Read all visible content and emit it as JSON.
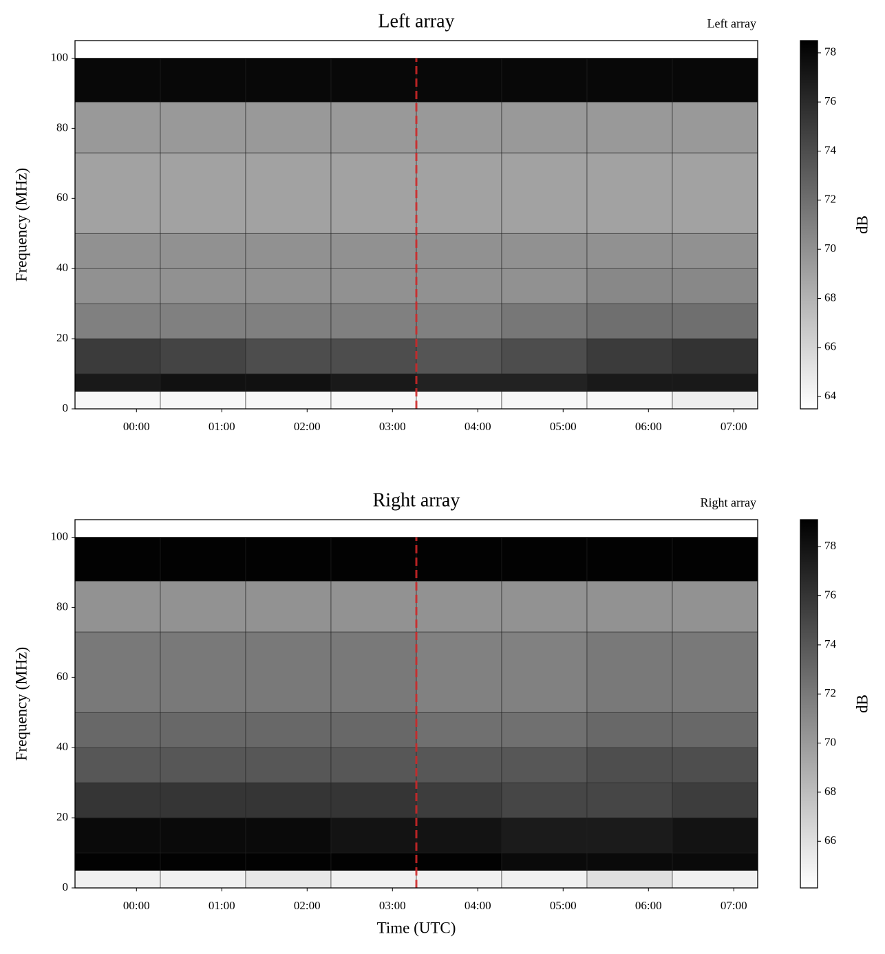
{
  "chart_data": [
    {
      "type": "heatmap",
      "title": "Left array",
      "corner_label": "Left array",
      "y_label": "Frequency (MHz)",
      "colorbar_label": "dB",
      "colormap": "gray_r",
      "xlim": [
        -0.72,
        7.28
      ],
      "xticks": [
        {
          "value": 0,
          "label": "00:00"
        },
        {
          "value": 1,
          "label": "01:00"
        },
        {
          "value": 2,
          "label": "02:00"
        },
        {
          "value": 3,
          "label": "03:00"
        },
        {
          "value": 4,
          "label": "04:00"
        },
        {
          "value": 5,
          "label": "05:00"
        },
        {
          "value": 6,
          "label": "06:00"
        },
        {
          "value": 7,
          "label": "07:00"
        }
      ],
      "ylim": [
        0,
        105
      ],
      "yticks": [
        0,
        20,
        40,
        60,
        80,
        100
      ],
      "clim": [
        63.5,
        78.5
      ],
      "cticks": [
        64,
        66,
        68,
        70,
        72,
        74,
        76,
        78
      ],
      "x_bins": [
        -0.72,
        0.28,
        1.28,
        2.28,
        3.28,
        4.28,
        5.28,
        6.28,
        7.28
      ],
      "y_bins": [
        0,
        5,
        10,
        20,
        30,
        40,
        50,
        73,
        87.5,
        100
      ],
      "values": [
        [
          64,
          64,
          64,
          64,
          64,
          64,
          64,
          64.5
        ],
        [
          77,
          77.5,
          77.5,
          77,
          76.5,
          76.5,
          77,
          77
        ],
        [
          75,
          74.5,
          74,
          74,
          73.5,
          74,
          75,
          75.5
        ],
        [
          71,
          71,
          71,
          71,
          71,
          71.5,
          72,
          72
        ],
        [
          70,
          70,
          70,
          70,
          70,
          70,
          70.5,
          70.5
        ],
        [
          70,
          70,
          70,
          70,
          70,
          70,
          70,
          70
        ],
        [
          69,
          69,
          69,
          69,
          69,
          69,
          69,
          69
        ],
        [
          69.5,
          69.5,
          69.5,
          69.5,
          69.5,
          69.5,
          69.5,
          69.5
        ],
        [
          78,
          78,
          78,
          78,
          78,
          78,
          78,
          78
        ]
      ],
      "vline": {
        "x": 3.28,
        "color": "#d62728",
        "style": "dashed"
      }
    },
    {
      "type": "heatmap",
      "title": "Right array",
      "corner_label": "Right array",
      "y_label": "Frequency (MHz)",
      "x_label": "Time (UTC)",
      "colorbar_label": "dB",
      "colormap": "gray_r",
      "xlim": [
        -0.72,
        7.28
      ],
      "xticks": [
        {
          "value": 0,
          "label": "00:00"
        },
        {
          "value": 1,
          "label": "01:00"
        },
        {
          "value": 2,
          "label": "02:00"
        },
        {
          "value": 3,
          "label": "03:00"
        },
        {
          "value": 4,
          "label": "04:00"
        },
        {
          "value": 5,
          "label": "05:00"
        },
        {
          "value": 6,
          "label": "06:00"
        },
        {
          "value": 7,
          "label": "07:00"
        }
      ],
      "ylim": [
        0,
        105
      ],
      "yticks": [
        0,
        20,
        40,
        60,
        80,
        100
      ],
      "clim": [
        64.1,
        79.1
      ],
      "cticks": [
        66,
        68,
        70,
        72,
        74,
        76,
        78
      ],
      "x_bins": [
        -0.72,
        0.28,
        1.28,
        2.28,
        3.28,
        4.28,
        5.28,
        6.28,
        7.28
      ],
      "y_bins": [
        0,
        5,
        10,
        20,
        30,
        40,
        50,
        73,
        87.5,
        100
      ],
      "values": [
        [
          65,
          65,
          65.5,
          65,
          65,
          65,
          66,
          65
        ],
        [
          79,
          79,
          79,
          79,
          79,
          78.5,
          78.5,
          78.5
        ],
        [
          78.5,
          78.5,
          78.5,
          78,
          78,
          77.5,
          77.5,
          78
        ],
        [
          76,
          76,
          76,
          76,
          75.5,
          75,
          75,
          75.5
        ],
        [
          74,
          74,
          74,
          74,
          74,
          74,
          74.5,
          74.5
        ],
        [
          73,
          73,
          73,
          73,
          72.5,
          72.5,
          73,
          73
        ],
        [
          72,
          72,
          72,
          72,
          71.5,
          71.5,
          72,
          72
        ],
        [
          70.5,
          70.5,
          70.5,
          70.5,
          70.5,
          70.5,
          70.5,
          70.5
        ],
        [
          79,
          79,
          79,
          79,
          79,
          79,
          79,
          79
        ]
      ],
      "vline": {
        "x": 3.28,
        "color": "#d62728",
        "style": "dashed"
      }
    }
  ]
}
